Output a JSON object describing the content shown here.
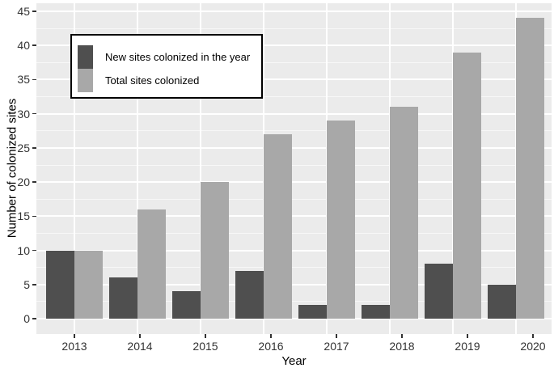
{
  "chart_data": {
    "type": "bar",
    "title": "",
    "xlabel": "Year",
    "ylabel": "Number of colonized sites",
    "categories": [
      "2013",
      "2014",
      "2015",
      "2016",
      "2017",
      "2018",
      "2019",
      "2020"
    ],
    "series": [
      {
        "name": "New sites colonized in the year",
        "color": "#4f4f4f",
        "values": [
          10,
          6,
          4,
          7,
          2,
          2,
          8,
          5
        ]
      },
      {
        "name": "Total sites colonized",
        "color": "#a8a8a8",
        "values": [
          10,
          16,
          20,
          27,
          29,
          31,
          39,
          44
        ]
      }
    ],
    "ylim": [
      0,
      45
    ],
    "yticks": [
      0,
      5,
      10,
      15,
      20,
      25,
      30,
      35,
      40,
      45
    ],
    "minor_grid_step": 2.5,
    "grid": "major-and-minor-white",
    "legend_position": "top-left-inside",
    "panel_bg": "#ebebeb",
    "grid_color": "#ffffff",
    "bar_layout": "grouped-dodge",
    "tick_color": "#333333"
  }
}
